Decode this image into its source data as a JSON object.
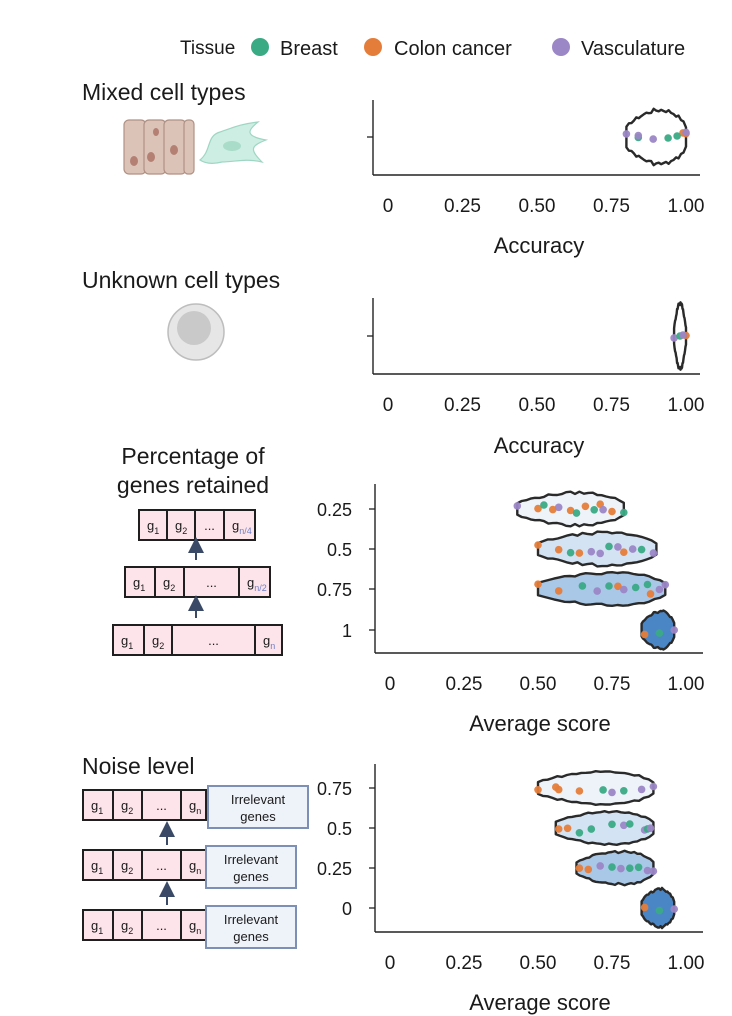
{
  "legend": {
    "title": "Tissue",
    "items": [
      {
        "label": "Breast",
        "color": "#3aaa85"
      },
      {
        "label": "Colon cancer",
        "color": "#e57d3a"
      },
      {
        "label": "Vasculature",
        "color": "#9b86c6"
      }
    ]
  },
  "icons": {
    "mixed": "mixed-cell-types-illustration-icon",
    "unknown": "unknown-cell-icon"
  },
  "panels": {
    "mixed": {
      "heading": "Mixed cell types"
    },
    "unknown": {
      "heading": "Unknown cell types"
    },
    "genes": {
      "heading_line1": "Percentage of",
      "heading_line2": "genes retained",
      "rows": [
        {
          "cells": [
            "g1",
            "g2",
            "...",
            "gn/4"
          ]
        },
        {
          "cells": [
            "g1",
            "g2",
            "...",
            "gn/2"
          ]
        },
        {
          "cells": [
            "g1",
            "g2",
            "...",
            "gn"
          ]
        }
      ]
    },
    "noise": {
      "heading": "Noise level",
      "cells": [
        "g1",
        "g2",
        "...",
        "gn"
      ],
      "irrelevant_line1": "Irrelevant",
      "irrelevant_line2": "genes"
    }
  },
  "chart_data": [
    {
      "type": "violin",
      "xlabel": "Accuracy",
      "xlim": [
        0,
        1
      ],
      "xticks": [
        "0",
        "0.25",
        "0.50",
        "0.75",
        "1.00"
      ],
      "categories": [
        ""
      ],
      "violins": [
        {
          "category": "",
          "color": "#ffffff",
          "range": [
            0.8,
            1.0
          ],
          "points": [
            {
              "tissue": "Vasculature",
              "x": 0.8
            },
            {
              "tissue": "Breast",
              "x": 0.84
            },
            {
              "tissue": "Vasculature",
              "x": 0.84
            },
            {
              "tissue": "Vasculature",
              "x": 0.89
            },
            {
              "tissue": "Breast",
              "x": 0.94
            },
            {
              "tissue": "Colon cancer",
              "x": 0.99
            },
            {
              "tissue": "Colon cancer",
              "x": 1.0
            },
            {
              "tissue": "Breast",
              "x": 0.97
            },
            {
              "tissue": "Vasculature",
              "x": 1.0
            }
          ]
        }
      ]
    },
    {
      "type": "violin",
      "xlabel": "Accuracy",
      "xlim": [
        0,
        1
      ],
      "xticks": [
        "0",
        "0.25",
        "0.50",
        "0.75",
        "1.00"
      ],
      "categories": [
        ""
      ],
      "violins": [
        {
          "category": "",
          "color": "#ffffff",
          "range": [
            0.96,
            1.0
          ],
          "points": [
            {
              "tissue": "Vasculature",
              "x": 0.96
            },
            {
              "tissue": "Breast",
              "x": 0.98
            },
            {
              "tissue": "Colon cancer",
              "x": 1.0
            },
            {
              "tissue": "Vasculature",
              "x": 0.99
            }
          ]
        }
      ]
    },
    {
      "type": "violin",
      "xlabel": "Average score",
      "xlim": [
        0,
        1
      ],
      "xticks": [
        "0",
        "0.25",
        "0.50",
        "0.75",
        "1.00"
      ],
      "categories": [
        "0.25",
        "0.5",
        "0.75",
        "1"
      ],
      "violins": [
        {
          "category": "0.25",
          "color": "#eef3fa",
          "range": [
            0.43,
            0.79
          ],
          "points": [
            {
              "tissue": "Vasculature",
              "x": 0.43
            },
            {
              "tissue": "Colon cancer",
              "x": 0.5
            },
            {
              "tissue": "Colon cancer",
              "x": 0.55
            },
            {
              "tissue": "Breast",
              "x": 0.52
            },
            {
              "tissue": "Vasculature",
              "x": 0.57
            },
            {
              "tissue": "Colon cancer",
              "x": 0.61
            },
            {
              "tissue": "Breast",
              "x": 0.63
            },
            {
              "tissue": "Colon cancer",
              "x": 0.66
            },
            {
              "tissue": "Breast",
              "x": 0.69
            },
            {
              "tissue": "Colon cancer",
              "x": 0.71
            },
            {
              "tissue": "Vasculature",
              "x": 0.72
            },
            {
              "tissue": "Colon cancer",
              "x": 0.75
            },
            {
              "tissue": "Breast",
              "x": 0.79
            }
          ]
        },
        {
          "category": "0.5",
          "color": "#d4e3f3",
          "range": [
            0.5,
            0.9
          ],
          "points": [
            {
              "tissue": "Colon cancer",
              "x": 0.5
            },
            {
              "tissue": "Colon cancer",
              "x": 0.57
            },
            {
              "tissue": "Breast",
              "x": 0.61
            },
            {
              "tissue": "Colon cancer",
              "x": 0.64
            },
            {
              "tissue": "Vasculature",
              "x": 0.68
            },
            {
              "tissue": "Vasculature",
              "x": 0.71
            },
            {
              "tissue": "Breast",
              "x": 0.74
            },
            {
              "tissue": "Vasculature",
              "x": 0.77
            },
            {
              "tissue": "Colon cancer",
              "x": 0.79
            },
            {
              "tissue": "Vasculature",
              "x": 0.82
            },
            {
              "tissue": "Breast",
              "x": 0.85
            },
            {
              "tissue": "Vasculature",
              "x": 0.89
            }
          ]
        },
        {
          "category": "0.75",
          "color": "#a9c8e8",
          "range": [
            0.5,
            0.93
          ],
          "points": [
            {
              "tissue": "Colon cancer",
              "x": 0.5
            },
            {
              "tissue": "Colon cancer",
              "x": 0.57
            },
            {
              "tissue": "Breast",
              "x": 0.65
            },
            {
              "tissue": "Vasculature",
              "x": 0.7
            },
            {
              "tissue": "Breast",
              "x": 0.74
            },
            {
              "tissue": "Colon cancer",
              "x": 0.77
            },
            {
              "tissue": "Vasculature",
              "x": 0.79
            },
            {
              "tissue": "Breast",
              "x": 0.83
            },
            {
              "tissue": "Breast",
              "x": 0.87
            },
            {
              "tissue": "Colon cancer",
              "x": 0.88
            },
            {
              "tissue": "Vasculature",
              "x": 0.91
            },
            {
              "tissue": "Vasculature",
              "x": 0.93
            }
          ]
        },
        {
          "category": "1",
          "color": "#4a86c6",
          "range": [
            0.85,
            0.96
          ],
          "points": [
            {
              "tissue": "Colon cancer",
              "x": 0.86
            },
            {
              "tissue": "Breast",
              "x": 0.91
            },
            {
              "tissue": "Vasculature",
              "x": 0.96
            }
          ]
        }
      ]
    },
    {
      "type": "violin",
      "xlabel": "Average score",
      "xlim": [
        0,
        1
      ],
      "xticks": [
        "0",
        "0.25",
        "0.50",
        "0.75",
        "1.00"
      ],
      "categories": [
        "0.75",
        "0.5",
        "0.25",
        "0"
      ],
      "violins": [
        {
          "category": "0.75",
          "color": "#eef3fa",
          "range": [
            0.5,
            0.89
          ],
          "points": [
            {
              "tissue": "Colon cancer",
              "x": 0.5
            },
            {
              "tissue": "Colon cancer",
              "x": 0.56
            },
            {
              "tissue": "Colon cancer",
              "x": 0.57
            },
            {
              "tissue": "Colon cancer",
              "x": 0.64
            },
            {
              "tissue": "Breast",
              "x": 0.72
            },
            {
              "tissue": "Vasculature",
              "x": 0.75
            },
            {
              "tissue": "Breast",
              "x": 0.79
            },
            {
              "tissue": "Vasculature",
              "x": 0.85
            },
            {
              "tissue": "Vasculature",
              "x": 0.89
            }
          ]
        },
        {
          "category": "0.5",
          "color": "#d4e3f3",
          "range": [
            0.56,
            0.89
          ],
          "points": [
            {
              "tissue": "Colon cancer",
              "x": 0.57
            },
            {
              "tissue": "Colon cancer",
              "x": 0.6
            },
            {
              "tissue": "Breast",
              "x": 0.64
            },
            {
              "tissue": "Breast",
              "x": 0.68
            },
            {
              "tissue": "Breast",
              "x": 0.75
            },
            {
              "tissue": "Vasculature",
              "x": 0.79
            },
            {
              "tissue": "Breast",
              "x": 0.81
            },
            {
              "tissue": "Vasculature",
              "x": 0.86
            },
            {
              "tissue": "Breast",
              "x": 0.87
            },
            {
              "tissue": "Vasculature",
              "x": 0.88
            }
          ]
        },
        {
          "category": "0.25",
          "color": "#a9c8e8",
          "range": [
            0.63,
            0.89
          ],
          "points": [
            {
              "tissue": "Colon cancer",
              "x": 0.64
            },
            {
              "tissue": "Colon cancer",
              "x": 0.67
            },
            {
              "tissue": "Vasculature",
              "x": 0.71
            },
            {
              "tissue": "Breast",
              "x": 0.75
            },
            {
              "tissue": "Vasculature",
              "x": 0.78
            },
            {
              "tissue": "Breast",
              "x": 0.81
            },
            {
              "tissue": "Breast",
              "x": 0.84
            },
            {
              "tissue": "Vasculature",
              "x": 0.87
            },
            {
              "tissue": "Vasculature",
              "x": 0.89
            }
          ]
        },
        {
          "category": "0",
          "color": "#4a86c6",
          "range": [
            0.85,
            0.96
          ],
          "points": [
            {
              "tissue": "Colon cancer",
              "x": 0.86
            },
            {
              "tissue": "Breast",
              "x": 0.91
            },
            {
              "tissue": "Vasculature",
              "x": 0.96
            }
          ]
        }
      ]
    }
  ]
}
